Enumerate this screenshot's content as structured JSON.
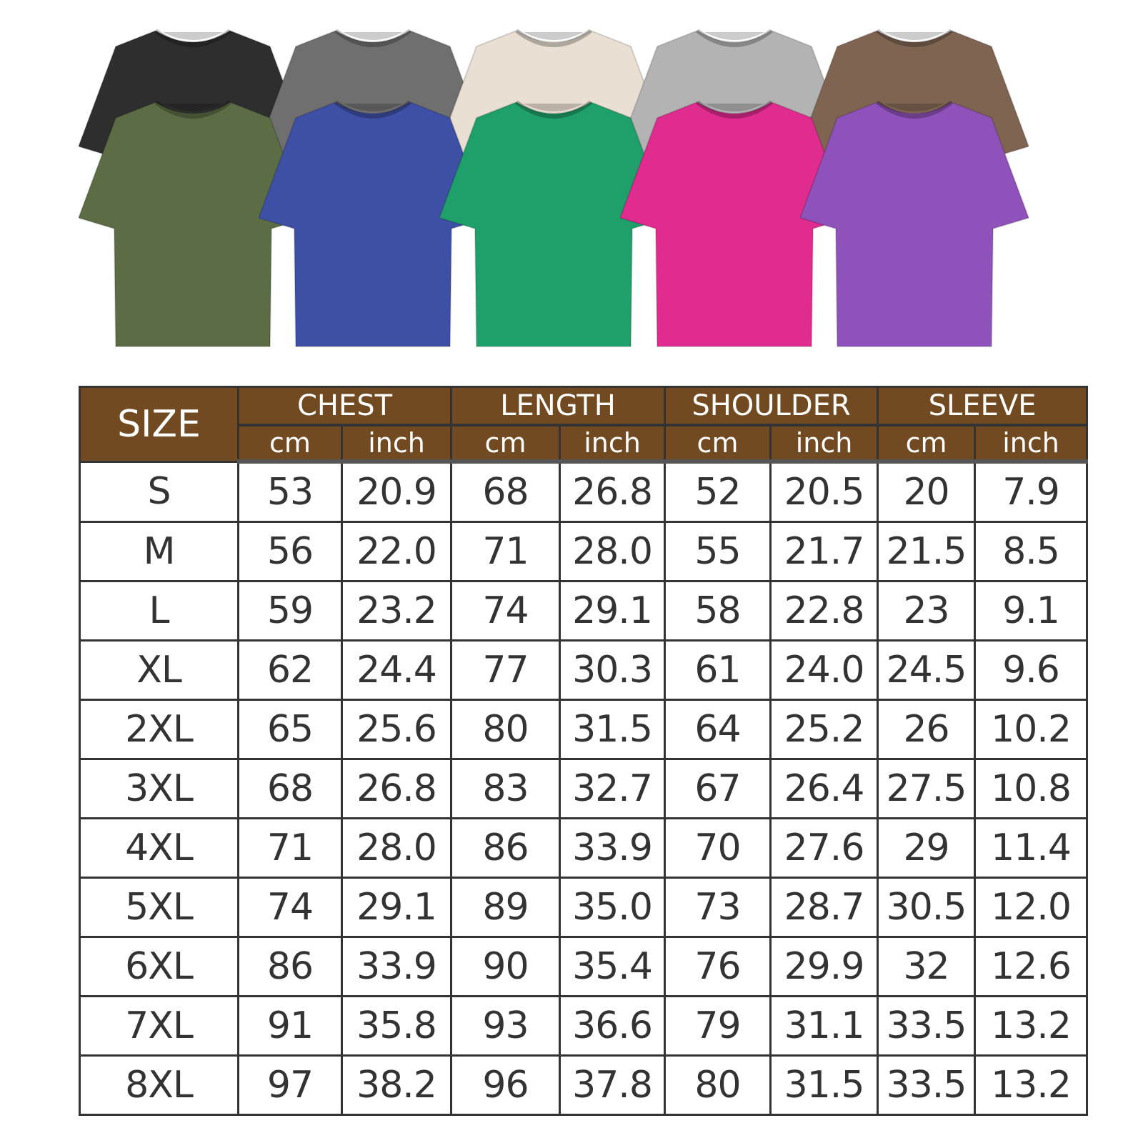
{
  "shirts": {
    "back_row": [
      {
        "color_name": "black",
        "hex": "#2e2e2e"
      },
      {
        "color_name": "dark-gray",
        "hex": "#6f6f6f"
      },
      {
        "color_name": "cream",
        "hex": "#e9dfd2"
      },
      {
        "color_name": "light-gray",
        "hex": "#b3b3b3"
      },
      {
        "color_name": "brown",
        "hex": "#7f6452"
      }
    ],
    "front_row": [
      {
        "color_name": "olive",
        "hex": "#5c6c45"
      },
      {
        "color_name": "blue",
        "hex": "#3e4fa6"
      },
      {
        "color_name": "green",
        "hex": "#1fa06b"
      },
      {
        "color_name": "pink",
        "hex": "#e02b8f"
      },
      {
        "color_name": "purple",
        "hex": "#8f52ba"
      }
    ]
  },
  "size_table": {
    "header_color": "#714a21",
    "size_label": "SIZE",
    "groups": [
      "CHEST",
      "LENGTH",
      "SHOULDER",
      "SLEEVE"
    ],
    "units": [
      "cm",
      "inch"
    ],
    "rows": [
      [
        "S",
        "53",
        "20.9",
        "68",
        "26.8",
        "52",
        "20.5",
        "20",
        "7.9"
      ],
      [
        "M",
        "56",
        "22.0",
        "71",
        "28.0",
        "55",
        "21.7",
        "21.5",
        "8.5"
      ],
      [
        "L",
        "59",
        "23.2",
        "74",
        "29.1",
        "58",
        "22.8",
        "23",
        "9.1"
      ],
      [
        "XL",
        "62",
        "24.4",
        "77",
        "30.3",
        "61",
        "24.0",
        "24.5",
        "9.6"
      ],
      [
        "2XL",
        "65",
        "25.6",
        "80",
        "31.5",
        "64",
        "25.2",
        "26",
        "10.2"
      ],
      [
        "3XL",
        "68",
        "26.8",
        "83",
        "32.7",
        "67",
        "26.4",
        "27.5",
        "10.8"
      ],
      [
        "4XL",
        "71",
        "28.0",
        "86",
        "33.9",
        "70",
        "27.6",
        "29",
        "11.4"
      ],
      [
        "5XL",
        "74",
        "29.1",
        "89",
        "35.0",
        "73",
        "28.7",
        "30.5",
        "12.0"
      ],
      [
        "6XL",
        "86",
        "33.9",
        "90",
        "35.4",
        "76",
        "29.9",
        "32",
        "12.6"
      ],
      [
        "7XL",
        "91",
        "35.8",
        "93",
        "36.6",
        "79",
        "31.1",
        "33.5",
        "13.2"
      ],
      [
        "8XL",
        "97",
        "38.2",
        "96",
        "37.8",
        "80",
        "31.5",
        "33.5",
        "13.2"
      ]
    ]
  }
}
